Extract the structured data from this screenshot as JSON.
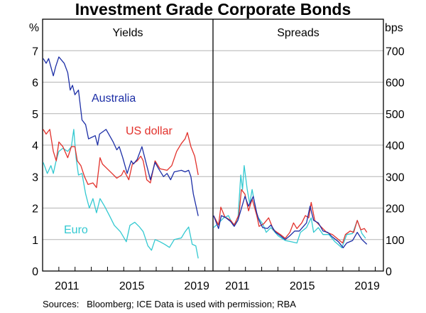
{
  "chart_data": {
    "type": "line",
    "title": "Investment Grade Corporate Bonds",
    "source": "Sources:   Bloomberg; ICE Data is used with permission; RBA",
    "xlim": [
      2010,
      2020.5
    ],
    "x_tick_labels": [
      "2011",
      "2015",
      "2019"
    ],
    "grid": true,
    "colors": {
      "Australia": "#1c2ea6",
      "US dollar": "#e2312b",
      "Euro": "#33c9d1"
    },
    "panels": [
      {
        "title": "Yields",
        "ylabel": "%",
        "ylim": [
          0,
          8
        ],
        "y_ticks": [
          0,
          1,
          2,
          3,
          4,
          5,
          6,
          7
        ],
        "series": [
          {
            "name": "Australia",
            "points": [
              [
                2010.04,
                6.75
              ],
              [
                2010.22,
                6.6
              ],
              [
                2010.37,
                6.75
              ],
              [
                2010.66,
                6.2
              ],
              [
                2010.81,
                6.5
              ],
              [
                2011.0,
                6.8
              ],
              [
                2011.33,
                6.6
              ],
              [
                2011.55,
                6.3
              ],
              [
                2011.7,
                5.75
              ],
              [
                2011.84,
                5.9
              ],
              [
                2011.99,
                5.6
              ],
              [
                2012.21,
                5.75
              ],
              [
                2012.43,
                4.8
              ],
              [
                2012.65,
                4.65
              ],
              [
                2012.83,
                4.2
              ],
              [
                2013.24,
                4.3
              ],
              [
                2013.39,
                4.0
              ],
              [
                2013.51,
                4.35
              ],
              [
                2013.91,
                4.5
              ],
              [
                2014.13,
                4.3
              ],
              [
                2014.35,
                4.1
              ],
              [
                2014.57,
                3.85
              ],
              [
                2014.72,
                3.95
              ],
              [
                2014.94,
                3.6
              ],
              [
                2015.21,
                3.1
              ],
              [
                2015.46,
                3.5
              ],
              [
                2015.6,
                3.4
              ],
              [
                2015.83,
                3.55
              ],
              [
                2016.12,
                3.95
              ],
              [
                2016.27,
                3.65
              ],
              [
                2016.64,
                2.9
              ],
              [
                2016.93,
                3.45
              ],
              [
                2017.15,
                3.25
              ],
              [
                2017.45,
                3.0
              ],
              [
                2017.67,
                3.1
              ],
              [
                2017.89,
                2.9
              ],
              [
                2018.11,
                3.15
              ],
              [
                2018.55,
                3.2
              ],
              [
                2018.78,
                3.15
              ],
              [
                2019.0,
                3.2
              ],
              [
                2019.14,
                3.0
              ],
              [
                2019.29,
                2.45
              ],
              [
                2019.59,
                1.75
              ]
            ]
          },
          {
            "name": "US dollar",
            "points": [
              [
                2010.04,
                4.5
              ],
              [
                2010.22,
                4.35
              ],
              [
                2010.44,
                4.5
              ],
              [
                2010.66,
                3.8
              ],
              [
                2010.84,
                3.5
              ],
              [
                2011.0,
                4.1
              ],
              [
                2011.25,
                3.95
              ],
              [
                2011.55,
                3.6
              ],
              [
                2011.77,
                3.95
              ],
              [
                2011.99,
                3.95
              ],
              [
                2012.14,
                3.5
              ],
              [
                2012.36,
                3.35
              ],
              [
                2012.58,
                3.0
              ],
              [
                2012.8,
                2.75
              ],
              [
                2013.1,
                2.8
              ],
              [
                2013.32,
                2.65
              ],
              [
                2013.54,
                3.6
              ],
              [
                2013.69,
                3.4
              ],
              [
                2013.98,
                3.25
              ],
              [
                2014.28,
                3.1
              ],
              [
                2014.57,
                2.95
              ],
              [
                2014.87,
                3.05
              ],
              [
                2015.01,
                3.2
              ],
              [
                2015.31,
                2.9
              ],
              [
                2015.53,
                3.4
              ],
              [
                2015.83,
                3.5
              ],
              [
                2016.05,
                3.65
              ],
              [
                2016.2,
                3.5
              ],
              [
                2016.42,
                2.9
              ],
              [
                2016.64,
                2.8
              ],
              [
                2016.93,
                3.5
              ],
              [
                2017.23,
                3.25
              ],
              [
                2017.67,
                3.2
              ],
              [
                2017.96,
                3.35
              ],
              [
                2018.26,
                3.8
              ],
              [
                2018.55,
                4.05
              ],
              [
                2018.78,
                4.2
              ],
              [
                2018.92,
                4.4
              ],
              [
                2019.14,
                3.95
              ],
              [
                2019.37,
                3.65
              ],
              [
                2019.59,
                3.05
              ]
            ]
          },
          {
            "name": "Euro",
            "points": [
              [
                2010.04,
                3.45
              ],
              [
                2010.29,
                3.1
              ],
              [
                2010.51,
                3.35
              ],
              [
                2010.66,
                3.1
              ],
              [
                2010.81,
                3.45
              ],
              [
                2011.0,
                3.8
              ],
              [
                2011.25,
                3.9
              ],
              [
                2011.55,
                3.8
              ],
              [
                2011.77,
                3.95
              ],
              [
                2011.92,
                4.5
              ],
              [
                2012.06,
                3.6
              ],
              [
                2012.21,
                3.05
              ],
              [
                2012.43,
                3.1
              ],
              [
                2012.65,
                2.45
              ],
              [
                2012.88,
                2.0
              ],
              [
                2013.1,
                2.3
              ],
              [
                2013.32,
                1.85
              ],
              [
                2013.54,
                2.3
              ],
              [
                2013.83,
                2.05
              ],
              [
                2014.13,
                1.75
              ],
              [
                2014.42,
                1.45
              ],
              [
                2014.79,
                1.25
              ],
              [
                2015.16,
                0.93
              ],
              [
                2015.38,
                1.45
              ],
              [
                2015.68,
                1.55
              ],
              [
                2015.97,
                1.4
              ],
              [
                2016.2,
                1.25
              ],
              [
                2016.49,
                0.8
              ],
              [
                2016.71,
                0.66
              ],
              [
                2016.93,
                1.0
              ],
              [
                2017.23,
                0.93
              ],
              [
                2017.52,
                0.85
              ],
              [
                2017.82,
                0.75
              ],
              [
                2018.11,
                1.0
              ],
              [
                2018.55,
                1.05
              ],
              [
                2018.78,
                1.25
              ],
              [
                2019.0,
                1.4
              ],
              [
                2019.22,
                0.85
              ],
              [
                2019.44,
                0.8
              ],
              [
                2019.59,
                0.4
              ]
            ]
          }
        ],
        "labels": [
          "Australia",
          "US dollar",
          "Euro"
        ]
      },
      {
        "title": "Spreads",
        "ylabel": "bps",
        "ylim": [
          0,
          800
        ],
        "y_ticks": [
          0,
          100,
          200,
          300,
          400,
          500,
          600,
          700
        ],
        "series": [
          {
            "name": "Australia",
            "points": [
              [
                2010.04,
                176
              ],
              [
                2010.34,
                135
              ],
              [
                2010.51,
                176
              ],
              [
                2010.8,
                169
              ],
              [
                2011.09,
                157
              ],
              [
                2011.31,
                142
              ],
              [
                2011.53,
                161
              ],
              [
                2011.75,
                199
              ],
              [
                2011.97,
                237
              ],
              [
                2012.19,
                206
              ],
              [
                2012.48,
                237
              ],
              [
                2012.7,
                184
              ],
              [
                2012.84,
                161
              ],
              [
                2013.06,
                138
              ],
              [
                2013.35,
                135
              ],
              [
                2013.57,
                146
              ],
              [
                2013.86,
                123
              ],
              [
                2014.15,
                112
              ],
              [
                2014.45,
                100
              ],
              [
                2014.74,
                112
              ],
              [
                2015.03,
                127
              ],
              [
                2015.32,
                127
              ],
              [
                2015.76,
                153
              ],
              [
                2015.98,
                206
              ],
              [
                2016.2,
                161
              ],
              [
                2016.49,
                153
              ],
              [
                2016.78,
                127
              ],
              [
                2017.07,
                123
              ],
              [
                2017.36,
                108
              ],
              [
                2017.73,
                93
              ],
              [
                2018.02,
                74
              ],
              [
                2018.24,
                89
              ],
              [
                2018.6,
                97
              ],
              [
                2018.89,
                123
              ],
              [
                2019.18,
                100
              ],
              [
                2019.48,
                85
              ]
            ]
          },
          {
            "name": "US dollar",
            "points": [
              [
                2010.04,
                176
              ],
              [
                2010.34,
                146
              ],
              [
                2010.48,
                203
              ],
              [
                2010.73,
                172
              ],
              [
                2011.09,
                161
              ],
              [
                2011.31,
                146
              ],
              [
                2011.6,
                180
              ],
              [
                2011.75,
                259
              ],
              [
                2011.97,
                244
              ],
              [
                2012.19,
                191
              ],
              [
                2012.41,
                229
              ],
              [
                2012.7,
                176
              ],
              [
                2012.84,
                142
              ],
              [
                2013.13,
                150
              ],
              [
                2013.43,
                169
              ],
              [
                2013.72,
                131
              ],
              [
                2014.15,
                116
              ],
              [
                2014.45,
                104
              ],
              [
                2014.74,
                123
              ],
              [
                2014.96,
                153
              ],
              [
                2015.17,
                135
              ],
              [
                2015.47,
                153
              ],
              [
                2015.69,
                176
              ],
              [
                2015.9,
                169
              ],
              [
                2016.05,
                218
              ],
              [
                2016.27,
                161
              ],
              [
                2016.63,
                142
              ],
              [
                2017.0,
                123
              ],
              [
                2017.36,
                116
              ],
              [
                2017.73,
                100
              ],
              [
                2017.99,
                89
              ],
              [
                2018.16,
                116
              ],
              [
                2018.45,
                127
              ],
              [
                2018.67,
                123
              ],
              [
                2018.89,
                161
              ],
              [
                2019.11,
                131
              ],
              [
                2019.33,
                135
              ],
              [
                2019.48,
                123
              ]
            ]
          },
          {
            "name": "Euro",
            "points": [
              [
                2010.04,
                138
              ],
              [
                2010.36,
                153
              ],
              [
                2010.66,
                169
              ],
              [
                2010.95,
                176
              ],
              [
                2011.24,
                146
              ],
              [
                2011.53,
                161
              ],
              [
                2011.71,
                305
              ],
              [
                2011.82,
                259
              ],
              [
                2011.92,
                335
              ],
              [
                2012.11,
                259
              ],
              [
                2012.26,
                214
              ],
              [
                2012.41,
                259
              ],
              [
                2012.7,
                176
              ],
              [
                2013.06,
                150
              ],
              [
                2013.28,
                123
              ],
              [
                2013.57,
                138
              ],
              [
                2014.01,
                112
              ],
              [
                2014.45,
                97
              ],
              [
                2014.81,
                93
              ],
              [
                2015.17,
                89
              ],
              [
                2015.39,
                123
              ],
              [
                2015.76,
                138
              ],
              [
                2016.05,
                169
              ],
              [
                2016.2,
                123
              ],
              [
                2016.49,
                138
              ],
              [
                2016.78,
                116
              ],
              [
                2017.14,
                116
              ],
              [
                2017.51,
                93
              ],
              [
                2017.94,
                74
              ],
              [
                2018.24,
                116
              ],
              [
                2018.6,
                119
              ],
              [
                2018.89,
                161
              ],
              [
                2019.18,
                119
              ],
              [
                2019.4,
                104
              ]
            ]
          }
        ]
      }
    ]
  }
}
